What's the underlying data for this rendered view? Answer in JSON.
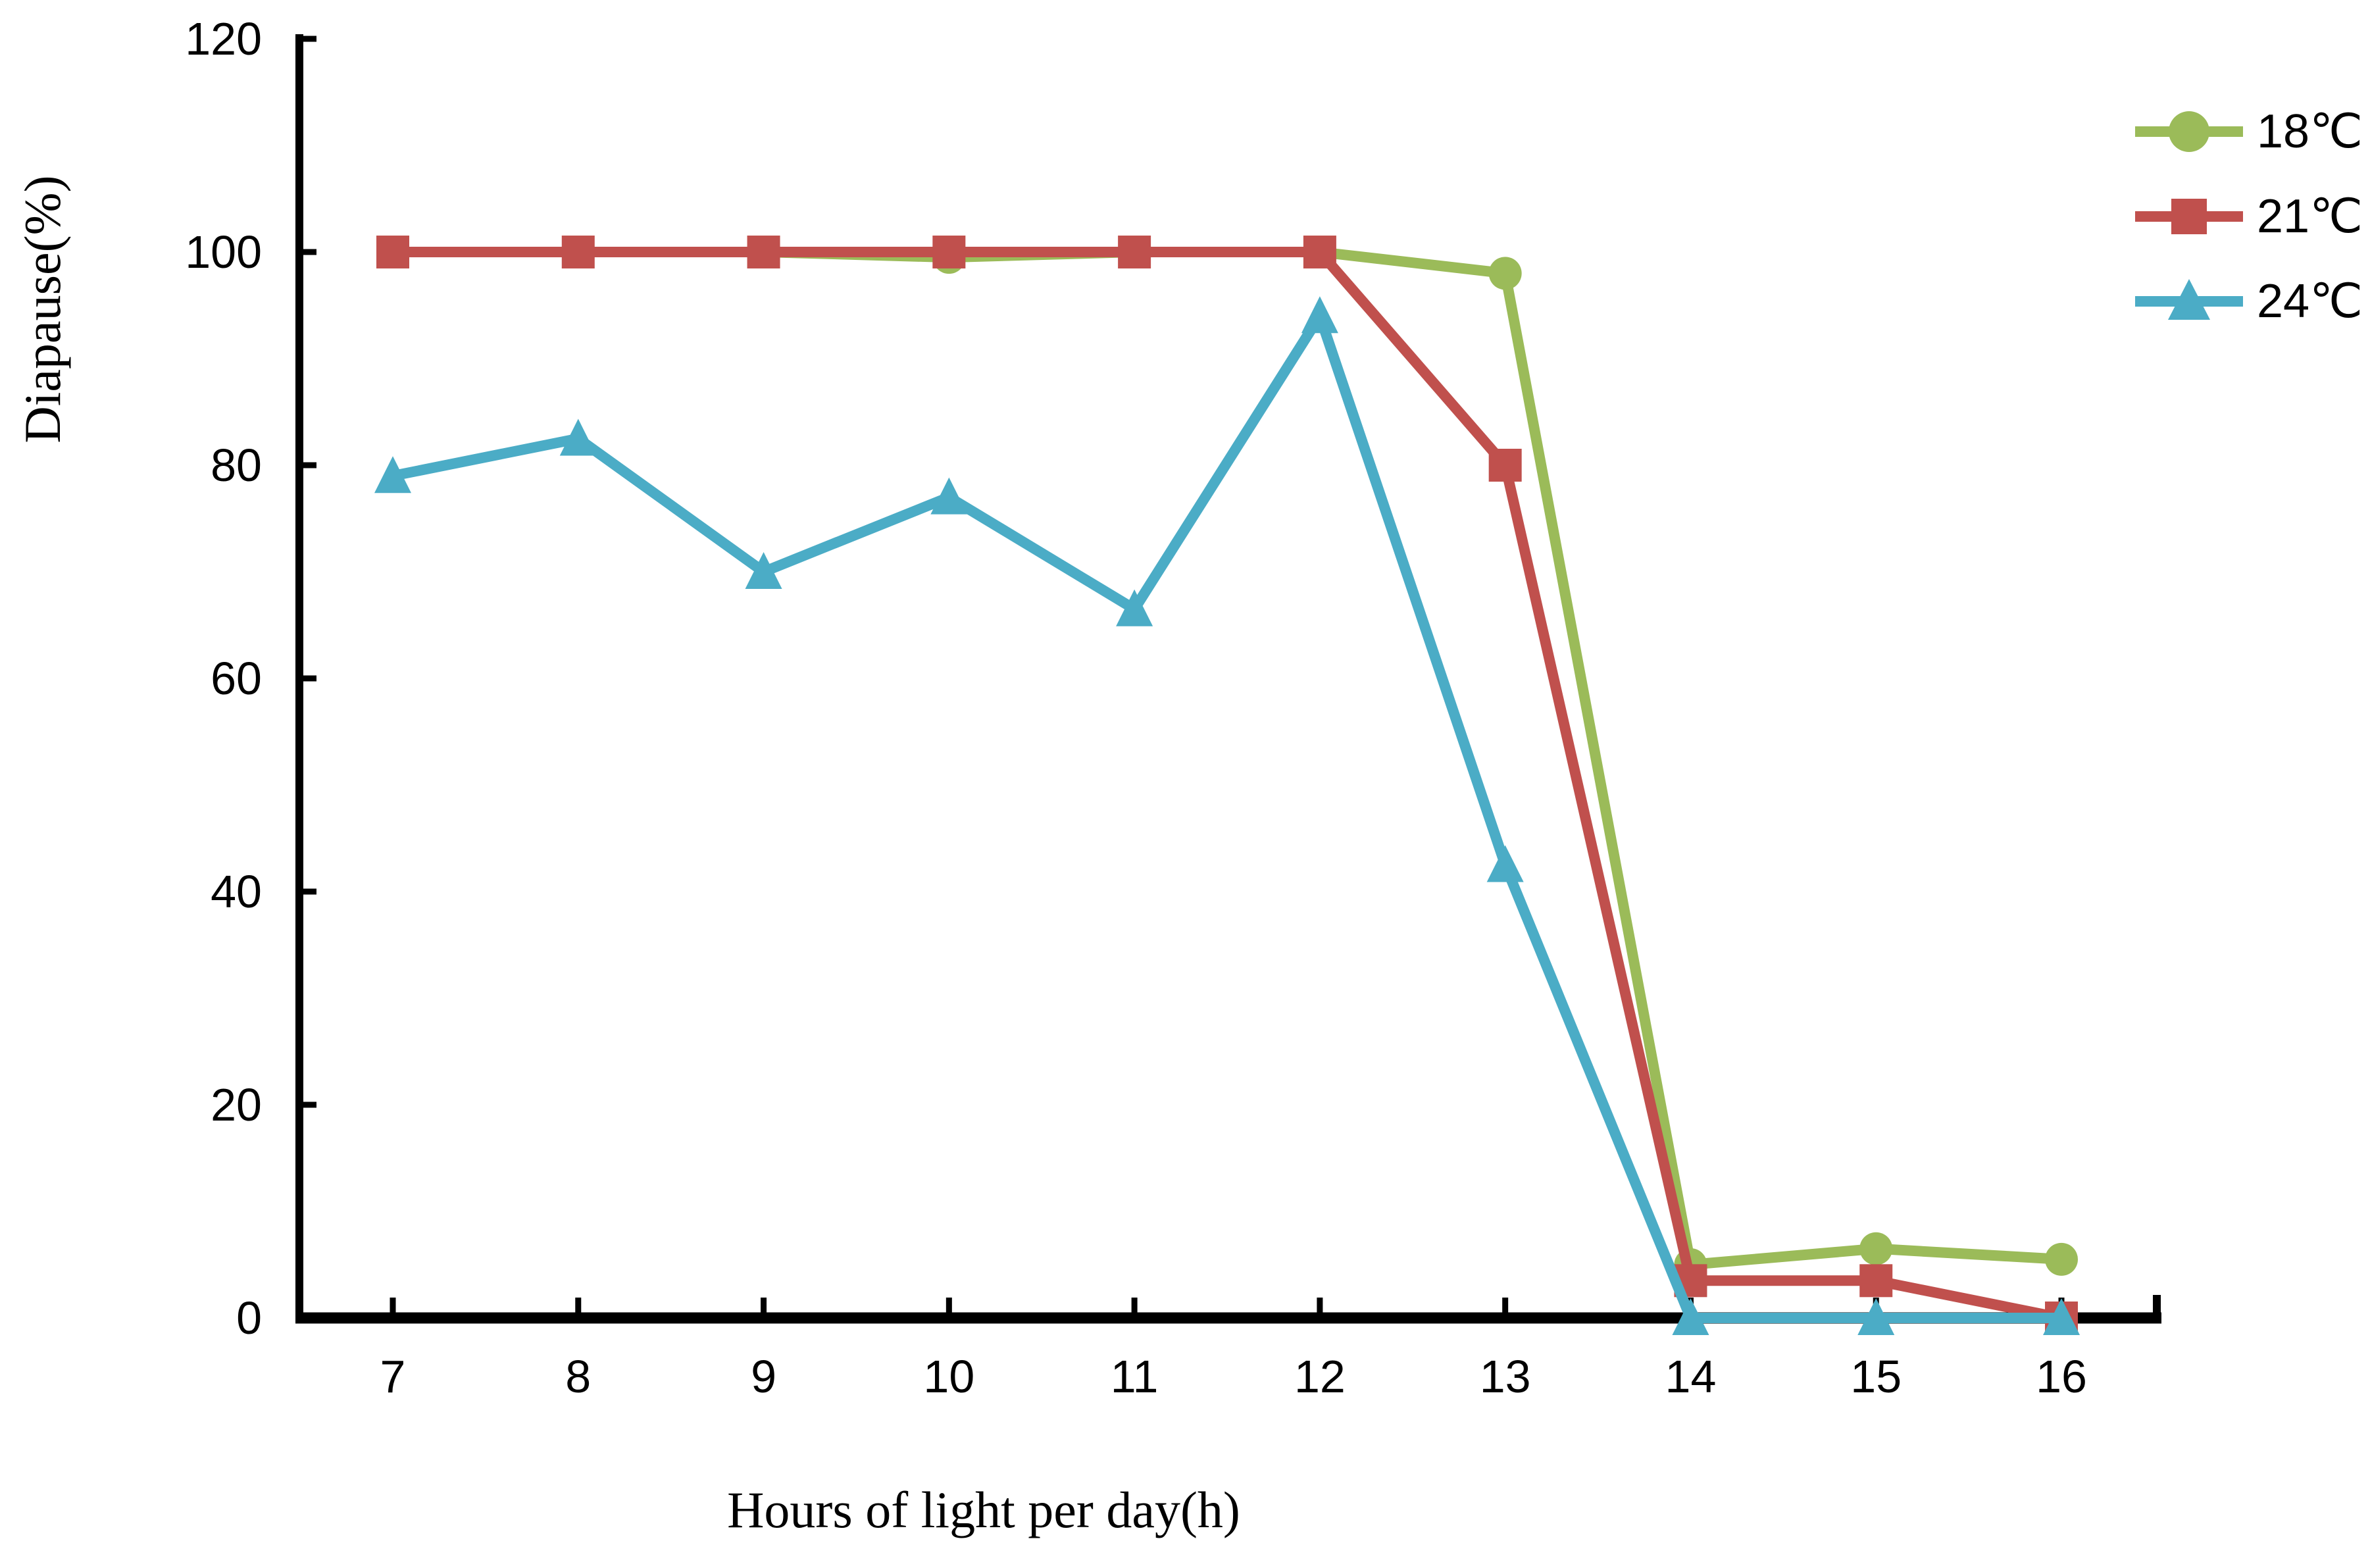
{
  "chart_data": {
    "type": "line",
    "title": "",
    "xlabel": "Hours of light per day(h)",
    "ylabel": "Diapause(%)",
    "x": [
      7,
      8,
      9,
      10,
      11,
      12,
      13,
      14,
      15,
      16
    ],
    "y_ticks": [
      0,
      20,
      40,
      60,
      80,
      100,
      120
    ],
    "ylim": [
      0,
      120
    ],
    "grid": false,
    "legend_position": "right",
    "axis_color": "#000000",
    "series": [
      {
        "name": "18℃",
        "marker": "circle",
        "color": "#9BBB59",
        "values": [
          100,
          100,
          100,
          99.5,
          100,
          100,
          98,
          5,
          6.5,
          5.5
        ]
      },
      {
        "name": "21℃",
        "marker": "square",
        "color": "#C0504D",
        "values": [
          100,
          100,
          100,
          100,
          100,
          100,
          80,
          3.5,
          3.5,
          0
        ]
      },
      {
        "name": "24℃",
        "marker": "triangle",
        "color": "#4BACC6",
        "values": [
          79,
          82.5,
          70,
          77,
          66.5,
          94,
          42.5,
          0,
          0,
          0
        ]
      }
    ]
  },
  "legend": {
    "items": [
      {
        "label": "18℃"
      },
      {
        "label": "21℃"
      },
      {
        "label": "24℃"
      }
    ]
  }
}
